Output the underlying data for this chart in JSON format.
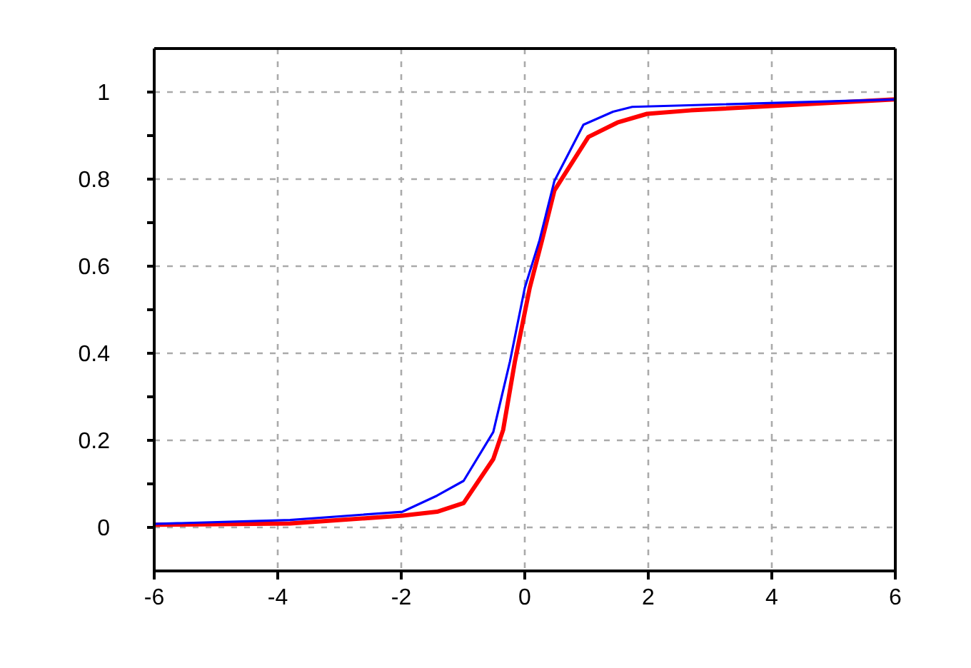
{
  "chart_data": {
    "type": "line",
    "xlim": [
      -6,
      6
    ],
    "ylim": [
      -0.1,
      1.1
    ],
    "xticks": [
      -6,
      -4,
      -2,
      0,
      2,
      4,
      6
    ],
    "yticks": [
      0,
      {
        "value": 0.1,
        "label": null
      },
      0.2,
      {
        "value": 0.3,
        "label": null
      },
      0.4,
      {
        "value": 0.5,
        "label": null
      },
      0.6,
      {
        "value": 0.7,
        "label": null
      },
      0.8,
      {
        "value": 0.9,
        "label": null
      },
      1
    ],
    "grid": true,
    "marker": "none",
    "line_style": "solid",
    "series": [
      {
        "color": "#ff0000",
        "x": [
          -6,
          -3.8,
          -1.98,
          -1.42,
          -0.99,
          -0.51,
          -0.35,
          -0.16,
          0.08,
          0.28,
          0.48,
          1.03,
          1.5,
          1.98,
          2.69,
          6
        ],
        "values": [
          0.006,
          0.009,
          0.027,
          0.036,
          0.056,
          0.157,
          0.224,
          0.381,
          0.55,
          0.66,
          0.774,
          0.897,
          0.93,
          0.95,
          0.958,
          0.983
        ]
      },
      {
        "color": "#0000ff",
        "x": [
          -6,
          -3.8,
          -1.98,
          -1.42,
          -0.99,
          -0.51,
          -0.24,
          0,
          0.24,
          0.48,
          0.95,
          1.43,
          1.74,
          6
        ],
        "values": [
          0.008,
          0.017,
          0.036,
          0.073,
          0.107,
          0.219,
          0.381,
          0.55,
          0.66,
          0.796,
          0.925,
          0.955,
          0.966,
          0.983
        ]
      }
    ]
  }
}
